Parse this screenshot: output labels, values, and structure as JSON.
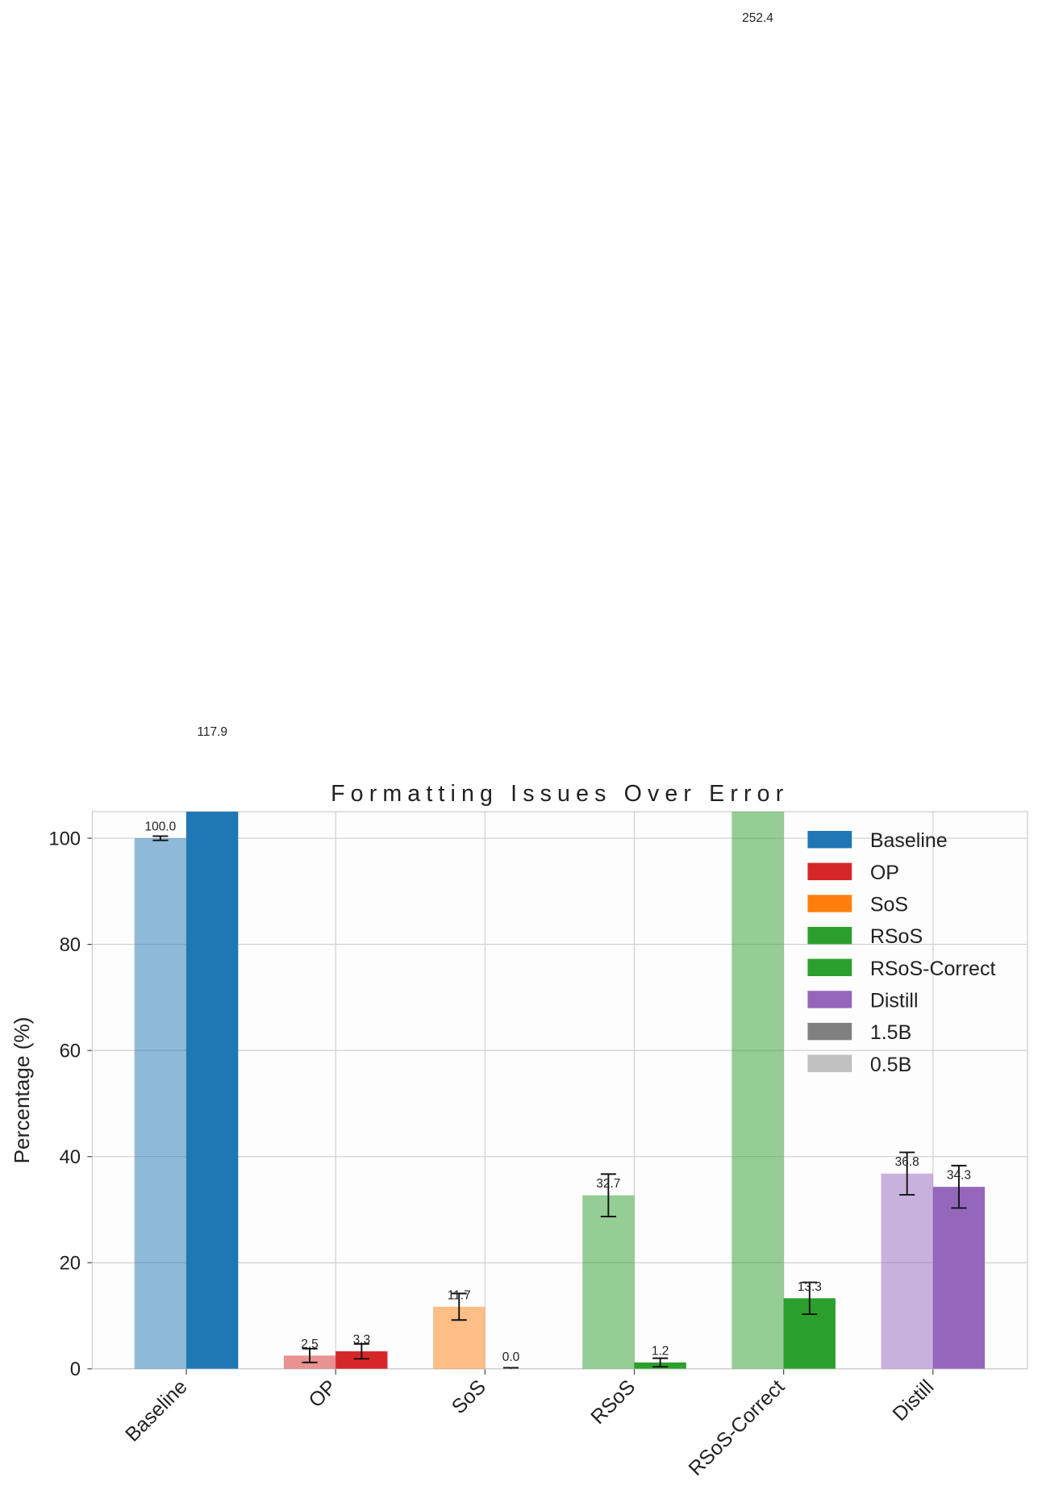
{
  "chart_data": {
    "type": "bar",
    "title": "Formatting Issues Over Error",
    "ylabel": "Percentage (%)",
    "categories": [
      "Baseline",
      "OP",
      "SoS",
      "RSoS",
      "RSoS-Correct",
      "Distill"
    ],
    "category_colors": [
      "#1f77b4",
      "#d62728",
      "#ff7f0e",
      "#2ca02c",
      "#2ca02c",
      "#9467bd"
    ],
    "series": [
      {
        "name": "0.5B",
        "color": "#c0c0c0",
        "alpha": 0.5,
        "values": [
          100.0,
          2.5,
          11.7,
          32.7,
          252.4,
          36.8
        ],
        "value_labels": [
          "100.0",
          "2.5",
          "11.7",
          "32.7",
          "252.4",
          "36.8"
        ],
        "errors": [
          0.4,
          1.3,
          2.5,
          4.0,
          null,
          4.0
        ]
      },
      {
        "name": "1.5B",
        "color": "#808080",
        "alpha": 1,
        "values": [
          117.9,
          3.3,
          0.0,
          1.2,
          13.3,
          34.3
        ],
        "value_labels": [
          "117.9",
          "3.3",
          "0.0",
          "1.2",
          "13.3",
          "34.3"
        ],
        "errors": [
          null,
          1.4,
          0.2,
          0.8,
          3.0,
          4.0
        ]
      }
    ],
    "ylim": [
      0,
      105
    ],
    "yticks": [
      0,
      20,
      40,
      60,
      80,
      100
    ],
    "grid": true,
    "legend": "upper right"
  }
}
